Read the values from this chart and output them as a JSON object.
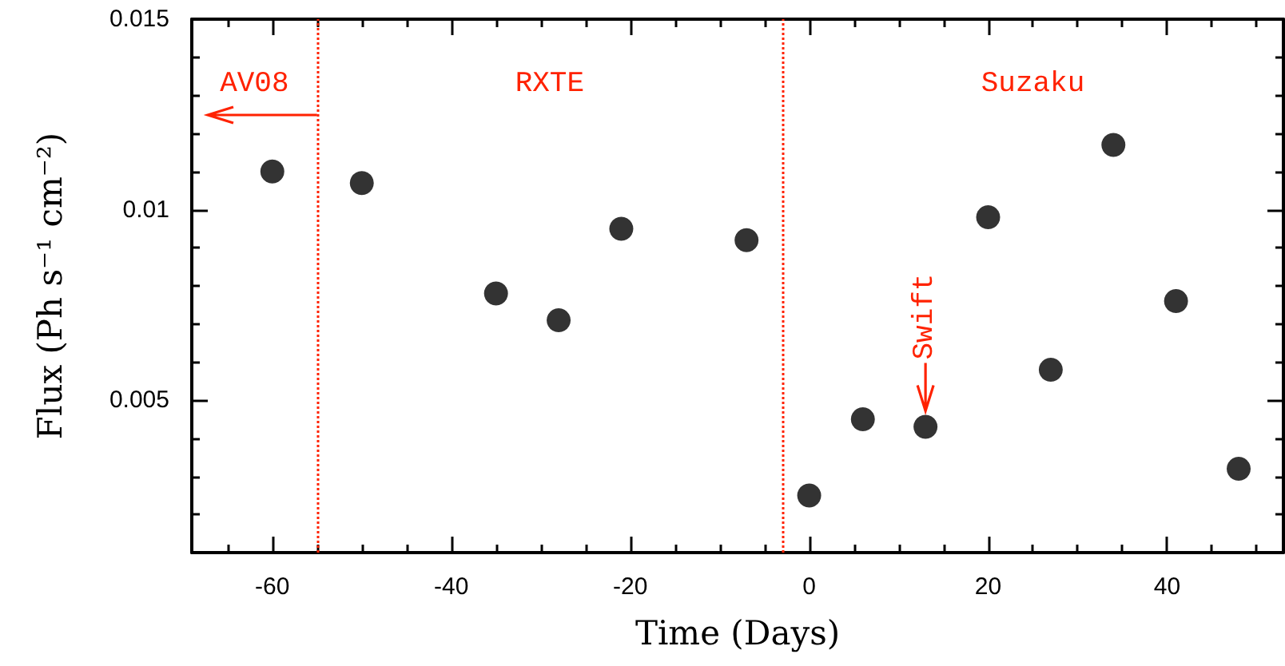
{
  "chart_data": {
    "type": "scatter",
    "xlabel": "Time (Days)",
    "ylabel": "Flux (Ph s⁻¹ cm⁻²)",
    "x": [
      -60,
      -50,
      -35,
      -28,
      -21,
      -7,
      0,
      6,
      13,
      20,
      27,
      34,
      41,
      48
    ],
    "series": [
      {
        "color": "#000000",
        "values": [
          0.011,
          0.0107,
          0.0078,
          0.0071,
          0.0095,
          0.0092,
          0.0025,
          0.0045,
          0.0043,
          0.0098,
          0.0058,
          0.0117,
          0.0076,
          0.0032
        ]
      }
    ],
    "marker": "circle",
    "grid": false,
    "xlim": [
      -69,
      53
    ],
    "ylim": [
      0.001,
      0.015
    ],
    "xticks": [
      {
        "value": -65,
        "label": null
      },
      -60,
      {
        "value": -55,
        "label": null
      },
      {
        "value": -50,
        "label": null
      },
      {
        "value": -45,
        "label": null
      },
      -40,
      {
        "value": -35,
        "label": null
      },
      {
        "value": -30,
        "label": null
      },
      {
        "value": -25,
        "label": null
      },
      -20,
      {
        "value": -15,
        "label": null
      },
      {
        "value": -10,
        "label": null
      },
      {
        "value": -5,
        "label": null
      },
      0,
      {
        "value": 5,
        "label": null
      },
      {
        "value": 10,
        "label": null
      },
      {
        "value": 15,
        "label": null
      },
      20,
      {
        "value": 25,
        "label": null
      },
      {
        "value": 30,
        "label": null
      },
      {
        "value": 35,
        "label": null
      },
      40,
      {
        "value": 45,
        "label": null
      },
      {
        "value": 50,
        "label": null
      }
    ],
    "yticks": [
      {
        "value": 0.002,
        "label": null
      },
      {
        "value": 0.003,
        "label": null
      },
      {
        "value": 0.004,
        "label": null
      },
      0.005,
      {
        "value": 0.006,
        "label": null
      },
      {
        "value": 0.007,
        "label": null
      },
      {
        "value": 0.008,
        "label": null
      },
      {
        "value": 0.009,
        "label": null
      },
      0.01,
      {
        "value": 0.011,
        "label": null
      },
      {
        "value": 0.012,
        "label": null
      },
      {
        "value": 0.013,
        "label": null
      },
      {
        "value": 0.014,
        "label": null
      },
      0.015
    ],
    "ref_lines": [
      {
        "axis": "x",
        "value": -55,
        "color": "#ff2200",
        "line_style": "dotted"
      },
      {
        "axis": "x",
        "value": -3,
        "color": "#ff2200",
        "line_style": "dotted"
      }
    ],
    "annotations": [
      "AV08",
      "RXTE",
      "Suzaku",
      {
        "text": "Swift",
        "x": 13,
        "y": 0.0043
      }
    ]
  }
}
